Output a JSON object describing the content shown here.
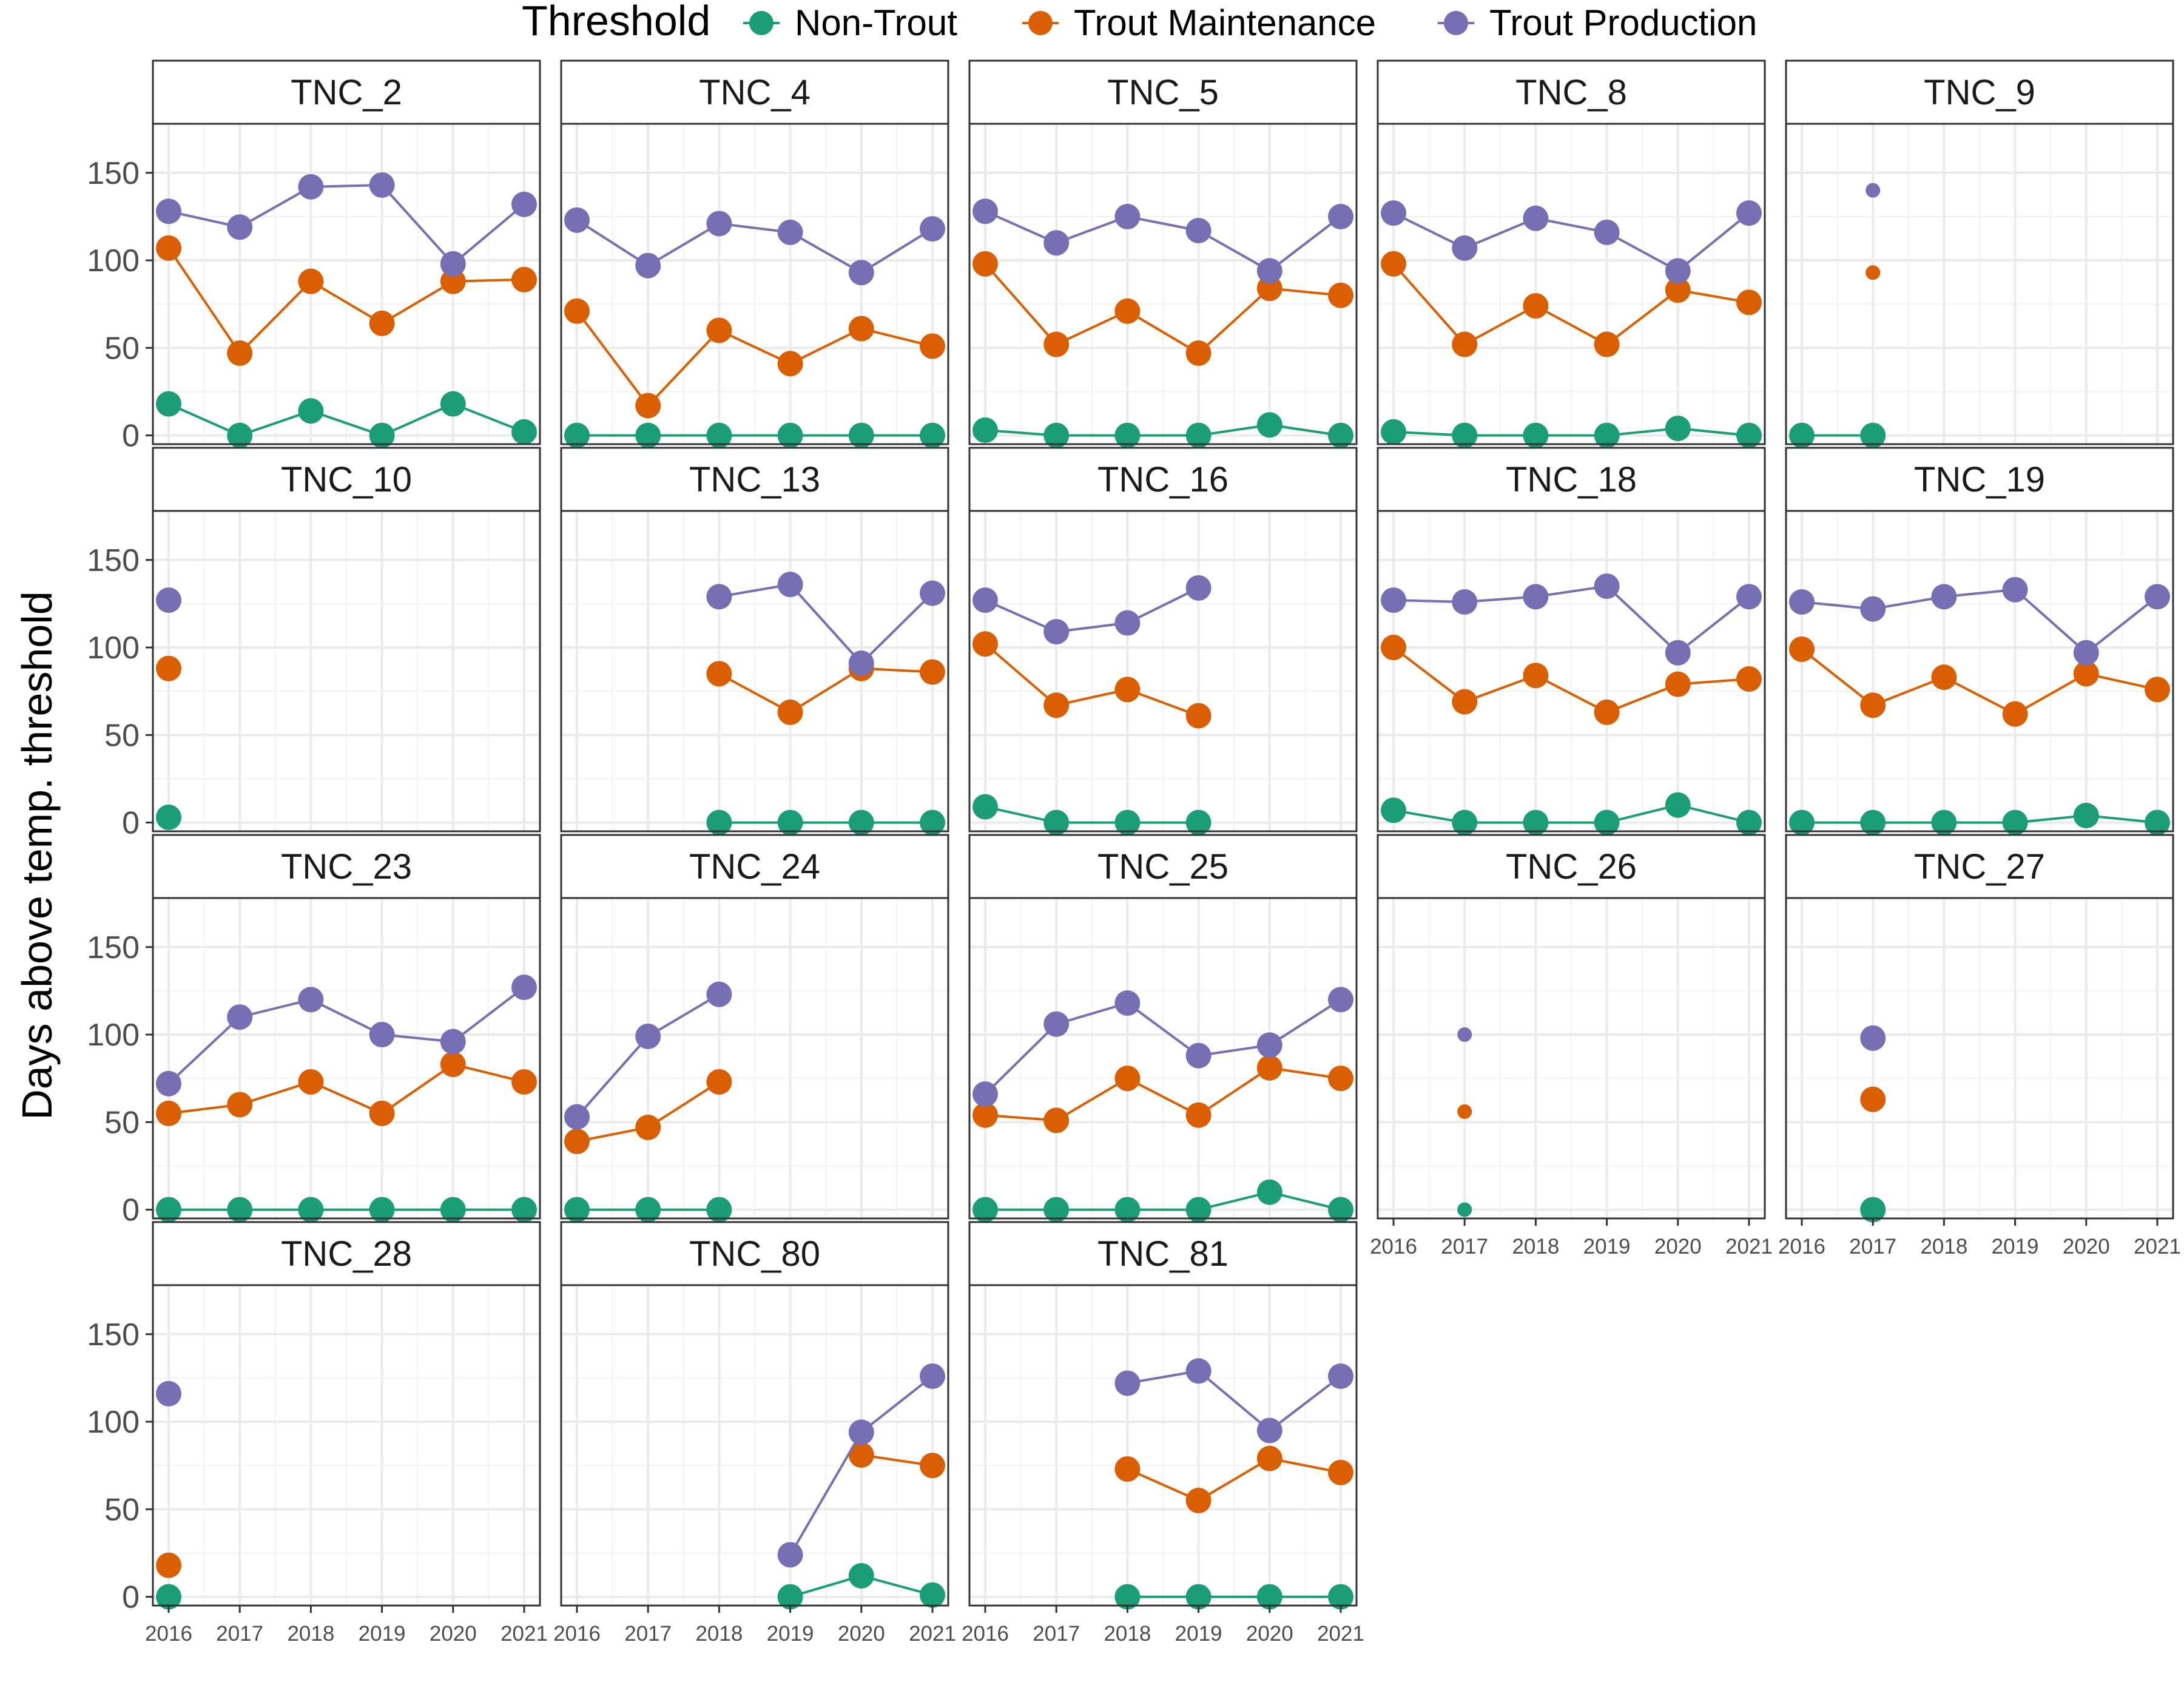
{
  "chart_data": {
    "type": "line",
    "ylabel": "Days above temp. threshold",
    "xlabel": "",
    "ylim": [
      -5,
      178
    ],
    "yticks": [
      0,
      50,
      100,
      150
    ],
    "x": [
      "2016",
      "2017",
      "2018",
      "2019",
      "2020",
      "2021"
    ],
    "legend": {
      "title": "Threshold",
      "position": "top",
      "entries": [
        {
          "name": "Non-Trout",
          "color": "#1b9e77"
        },
        {
          "name": "Trout Maintenance",
          "color": "#d95f02"
        },
        {
          "name": "Trout Production",
          "color": "#7570b3"
        }
      ]
    },
    "grid": true,
    "panels": [
      {
        "name": "TNC_2",
        "series": {
          "Non-Trout": [
            18,
            0,
            14,
            0,
            18,
            2
          ],
          "Trout Maintenance": [
            107,
            47,
            88,
            64,
            88,
            89
          ],
          "Trout Production": [
            128,
            119,
            142,
            143,
            98,
            132
          ]
        }
      },
      {
        "name": "TNC_4",
        "series": {
          "Non-Trout": [
            0,
            0,
            0,
            0,
            0,
            0
          ],
          "Trout Maintenance": [
            71,
            17,
            60,
            41,
            61,
            51
          ],
          "Trout Production": [
            123,
            97,
            121,
            116,
            93,
            118
          ]
        }
      },
      {
        "name": "TNC_5",
        "series": {
          "Non-Trout": [
            3,
            0,
            0,
            0,
            6,
            0
          ],
          "Trout Maintenance": [
            98,
            52,
            71,
            47,
            84,
            80
          ],
          "Trout Production": [
            128,
            110,
            125,
            117,
            94,
            125
          ]
        }
      },
      {
        "name": "TNC_8",
        "series": {
          "Non-Trout": [
            2,
            0,
            0,
            0,
            4,
            0
          ],
          "Trout Maintenance": [
            98,
            52,
            74,
            52,
            83,
            76
          ],
          "Trout Production": [
            127,
            107,
            124,
            116,
            94,
            127
          ]
        }
      },
      {
        "name": "TNC_9",
        "series": {
          "Non-Trout": [
            0,
            0,
            null,
            null,
            null,
            null
          ],
          "Trout Maintenance": [
            null,
            93,
            null,
            null,
            null,
            null
          ],
          "Trout Production": [
            null,
            140,
            null,
            null,
            null,
            null
          ]
        }
      },
      {
        "name": "TNC_10",
        "series": {
          "Non-Trout": [
            3,
            null,
            null,
            null,
            null,
            null
          ],
          "Trout Maintenance": [
            88,
            null,
            null,
            null,
            null,
            null
          ],
          "Trout Production": [
            127,
            null,
            null,
            null,
            null,
            null
          ]
        }
      },
      {
        "name": "TNC_13",
        "series": {
          "Non-Trout": [
            null,
            null,
            0,
            0,
            0,
            0
          ],
          "Trout Maintenance": [
            null,
            null,
            85,
            63,
            88,
            86
          ],
          "Trout Production": [
            null,
            null,
            129,
            136,
            91,
            131
          ]
        }
      },
      {
        "name": "TNC_16",
        "series": {
          "Non-Trout": [
            9,
            0,
            0,
            0,
            null,
            null
          ],
          "Trout Maintenance": [
            102,
            67,
            76,
            61,
            null,
            null
          ],
          "Trout Production": [
            127,
            109,
            114,
            134,
            null,
            null
          ]
        }
      },
      {
        "name": "TNC_18",
        "series": {
          "Non-Trout": [
            7,
            0,
            0,
            0,
            10,
            0
          ],
          "Trout Maintenance": [
            100,
            69,
            84,
            63,
            79,
            82
          ],
          "Trout Production": [
            127,
            126,
            129,
            135,
            97,
            129
          ]
        }
      },
      {
        "name": "TNC_19",
        "series": {
          "Non-Trout": [
            0,
            0,
            0,
            0,
            4,
            0
          ],
          "Trout Maintenance": [
            99,
            67,
            83,
            62,
            85,
            76
          ],
          "Trout Production": [
            126,
            122,
            129,
            133,
            97,
            129
          ]
        }
      },
      {
        "name": "TNC_23",
        "series": {
          "Non-Trout": [
            0,
            0,
            0,
            0,
            0,
            0
          ],
          "Trout Maintenance": [
            55,
            60,
            73,
            55,
            83,
            73
          ],
          "Trout Production": [
            72,
            110,
            120,
            100,
            96,
            127
          ]
        }
      },
      {
        "name": "TNC_24",
        "series": {
          "Non-Trout": [
            0,
            0,
            0,
            null,
            null,
            null
          ],
          "Trout Maintenance": [
            39,
            47,
            73,
            null,
            null,
            null
          ],
          "Trout Production": [
            53,
            99,
            123,
            null,
            null,
            null
          ]
        }
      },
      {
        "name": "TNC_25",
        "series": {
          "Non-Trout": [
            0,
            0,
            0,
            0,
            10,
            0
          ],
          "Trout Maintenance": [
            54,
            51,
            75,
            54,
            81,
            75
          ],
          "Trout Production": [
            66,
            106,
            118,
            88,
            94,
            120
          ]
        }
      },
      {
        "name": "TNC_26",
        "series": {
          "Non-Trout": [
            null,
            0,
            null,
            null,
            null,
            null
          ],
          "Trout Maintenance": [
            null,
            56,
            null,
            null,
            null,
            null
          ],
          "Trout Production": [
            null,
            100,
            null,
            null,
            null,
            null
          ]
        }
      },
      {
        "name": "TNC_27",
        "series": {
          "Non-Trout": [
            null,
            0,
            null,
            null,
            null,
            null
          ],
          "Trout Maintenance": [
            null,
            63,
            null,
            null,
            null,
            null
          ],
          "Trout Production": [
            null,
            98,
            null,
            null,
            null,
            null
          ]
        }
      },
      {
        "name": "TNC_28",
        "series": {
          "Non-Trout": [
            0,
            null,
            null,
            null,
            null,
            null
          ],
          "Trout Maintenance": [
            18,
            null,
            null,
            null,
            null,
            null
          ],
          "Trout Production": [
            116,
            null,
            null,
            null,
            null,
            null
          ]
        }
      },
      {
        "name": "TNC_80",
        "series": {
          "Non-Trout": [
            null,
            null,
            null,
            0,
            12,
            1
          ],
          "Trout Maintenance": [
            null,
            null,
            null,
            null,
            81,
            75
          ],
          "Trout Production": [
            null,
            null,
            null,
            24,
            94,
            126
          ]
        }
      },
      {
        "name": "TNC_81",
        "series": {
          "Non-Trout": [
            null,
            null,
            0,
            0,
            0,
            0
          ],
          "Trout Maintenance": [
            null,
            null,
            73,
            55,
            79,
            71
          ],
          "Trout Production": [
            null,
            null,
            122,
            129,
            95,
            126
          ]
        }
      }
    ]
  }
}
